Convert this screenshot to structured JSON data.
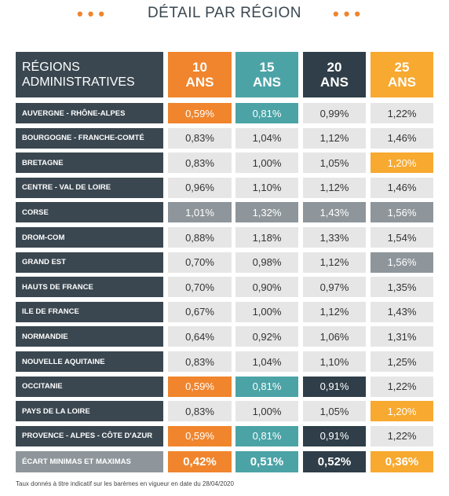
{
  "header": {
    "title": "DÉTAIL PAR RÉGION"
  },
  "table": {
    "columns": [
      "RÉGIONS ADMINISTRATIVES",
      "10 ANS",
      "15 ANS",
      "20 ANS",
      "25 ANS"
    ],
    "rows": [
      [
        "AUVERGNE - RHÔNE-ALPES",
        "0,59%",
        "0,81%",
        "0,99%",
        "1,22%"
      ],
      [
        "BOURGOGNE - FRANCHE-COMTÉ",
        "0,83%",
        "1,04%",
        "1,12%",
        "1,46%"
      ],
      [
        "BRETAGNE",
        "0,83%",
        "1,00%",
        "1,05%",
        "1,20%"
      ],
      [
        "CENTRE - VAL DE LOIRE",
        "0,96%",
        "1,10%",
        "1,12%",
        "1,46%"
      ],
      [
        "CORSE",
        "1,01%",
        "1,32%",
        "1,43%",
        "1,56%"
      ],
      [
        "DROM-COM",
        "0,88%",
        "1,18%",
        "1,33%",
        "1,54%"
      ],
      [
        "GRAND EST",
        "0,70%",
        "0,98%",
        "1,12%",
        "1,56%"
      ],
      [
        "HAUTS DE FRANCE",
        "0,70%",
        "0,90%",
        "0,97%",
        "1,35%"
      ],
      [
        "ILE DE FRANCE",
        "0,67%",
        "1,00%",
        "1,12%",
        "1,43%"
      ],
      [
        "NORMANDIE",
        "0,64%",
        "0,92%",
        "1,06%",
        "1,31%"
      ],
      [
        "NOUVELLE  AQUITAINE",
        "0,83%",
        "1,04%",
        "1,10%",
        "1,25%"
      ],
      [
        "OCCITANIE",
        "0,59%",
        "0,81%",
        "0,91%",
        "1,22%"
      ],
      [
        "PAYS DE LA LOIRE",
        "0,83%",
        "1,00%",
        "1,05%",
        "1,20%"
      ],
      [
        "PROVENCE - ALPES - CÔTE D'AZUR",
        "0,59%",
        "0,81%",
        "0,91%",
        "1,22%"
      ]
    ],
    "footer": [
      "ÉCART MINIMAS ET MAXIMAS",
      "0,42%",
      "0,51%",
      "0,52%",
      "0,36%"
    ]
  },
  "note": "Taux donnés à titre indicatif sur les barèmes en vigueur en date du 28/04/2020"
}
